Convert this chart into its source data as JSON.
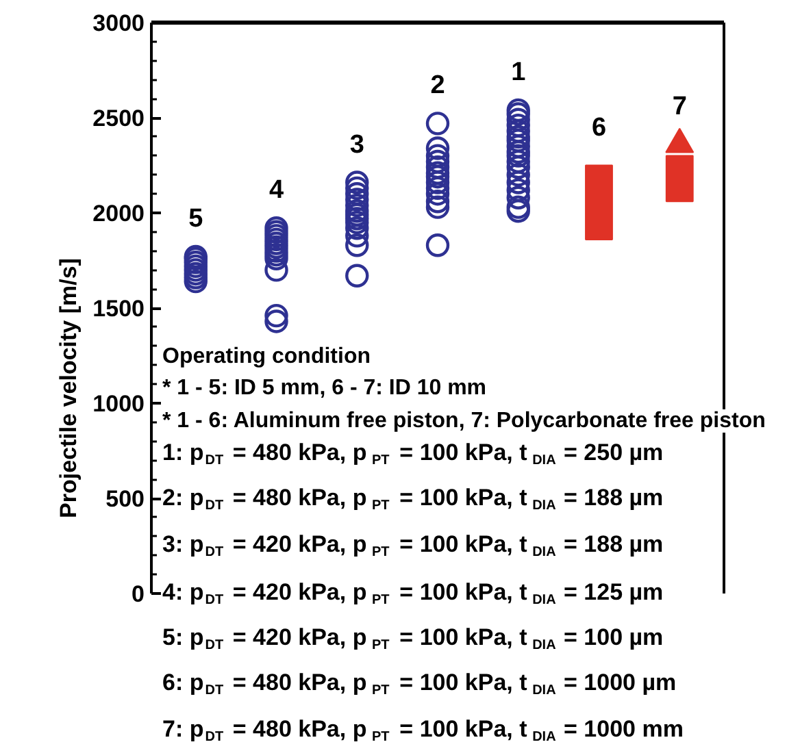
{
  "chart_data": {
    "type": "scatter",
    "ylabel": "Projectile velocity [m/s]",
    "categories": [
      "5",
      "4",
      "3",
      "2",
      "1",
      "6",
      "7"
    ],
    "ylim": [
      0,
      3000
    ],
    "yticks": [
      0,
      {
        "value": 100,
        "label": null
      },
      {
        "value": 200,
        "label": null
      },
      {
        "value": 300,
        "label": null
      },
      {
        "value": 400,
        "label": null
      },
      500,
      {
        "value": 600,
        "label": null
      },
      {
        "value": 700,
        "label": null
      },
      {
        "value": 800,
        "label": null
      },
      {
        "value": 900,
        "label": null
      },
      1000,
      {
        "value": 1100,
        "label": null
      },
      {
        "value": 1200,
        "label": null
      },
      {
        "value": 1300,
        "label": null
      },
      {
        "value": 1400,
        "label": null
      },
      1500,
      {
        "value": 1600,
        "label": null
      },
      {
        "value": 1700,
        "label": null
      },
      {
        "value": 1800,
        "label": null
      },
      {
        "value": 1900,
        "label": null
      },
      2000,
      {
        "value": 2100,
        "label": null
      },
      {
        "value": 2200,
        "label": null
      },
      {
        "value": 2300,
        "label": null
      },
      {
        "value": 2400,
        "label": null
      },
      2500,
      {
        "value": 2600,
        "label": null
      },
      {
        "value": 2700,
        "label": null
      },
      {
        "value": 2800,
        "label": null
      },
      {
        "value": 2900,
        "label": null
      },
      3000
    ],
    "tick_labels": "y",
    "grid": false,
    "series": [
      {
        "marker": "circle",
        "color": "#2e3192",
        "x": [
          "5",
          "5",
          "5",
          "5",
          "5",
          "5",
          "5",
          "5",
          "4",
          "4",
          "4",
          "4",
          "4",
          "4",
          "4",
          "4",
          "4",
          "4",
          "4",
          "4",
          "3",
          "3",
          "3",
          "3",
          "3",
          "3",
          "3",
          "3",
          "3",
          "3",
          "3",
          "3",
          "3",
          "2",
          "2",
          "2",
          "2",
          "2",
          "2",
          "2",
          "2",
          "2",
          "2",
          "2",
          "2",
          "2",
          "1",
          "1",
          "1",
          "1",
          "1",
          "1",
          "1",
          "1",
          "1",
          "1",
          "1",
          "1",
          "1",
          "1",
          "1",
          "1",
          "1",
          "1"
        ],
        "values": [
          1640,
          1660,
          1680,
          1700,
          1720,
          1740,
          1760,
          1770,
          1920,
          1900,
          1880,
          1860,
          1840,
          1820,
          1800,
          1780,
          1760,
          1700,
          1460,
          1430,
          2160,
          2130,
          2100,
          2070,
          2040,
          2010,
          1990,
          1970,
          1950,
          1920,
          1880,
          1830,
          1670,
          2470,
          2340,
          2300,
          2270,
          2240,
          2210,
          2190,
          2160,
          2130,
          2100,
          2060,
          2030,
          1830,
          2540,
          2520,
          2490,
          2460,
          2430,
          2400,
          2380,
          2350,
          2320,
          2300,
          2270,
          2240,
          2200,
          2160,
          2120,
          2080,
          2030,
          2010
        ]
      },
      {
        "type": "bar",
        "color": "#e03226",
        "values": [
          null,
          null,
          null,
          null,
          null,
          390,
          240
        ],
        "base": [
          null,
          null,
          null,
          null,
          null,
          1860,
          2060
        ]
      },
      {
        "type": "scatter",
        "marker": "triangle",
        "color": "#e03226",
        "x": [
          "7"
        ],
        "values": [
          2360
        ]
      }
    ],
    "annotations": [
      "Operating condition",
      "* 1 - 5: ID 5 mm, 6 - 7: ID 10 mm",
      "* 1 - 6: Aluminum free piston, 7: Polycarbonate free piston",
      "1: p$_{DT}$ = 480 kPa, p$_{PT}$ = 100 kPa, t$_{DIA}$ = 250 µm",
      "2: p$_{DT}$ = 480 kPa, p$_{PT}$ = 100 kPa, t$_{DIA}$ = 188 µm",
      "3: p$_{DT}$ = 420 kPa, p$_{PT}$ = 100 kPa, t$_{DIA}$ = 188 µm",
      "4: p$_{DT}$ = 420 kPa, p$_{PT}$ = 100 kPa, t$_{DIA}$ = 125 µm",
      "5: p$_{DT}$ = 420 kPa, p$_{PT}$ = 100 kPa, t$_{DIA}$ = 100 µm",
      "6: p$_{DT}$ = 480 kPa, p$_{PT}$ = 100 kPa, t$_{DIA}$ = 1000 µm",
      "7: p$_{DT}$ = 480 kPa, p$_{PT}$ = 100 kPa, t$_{DIA}$ = 1000 mm"
    ]
  }
}
